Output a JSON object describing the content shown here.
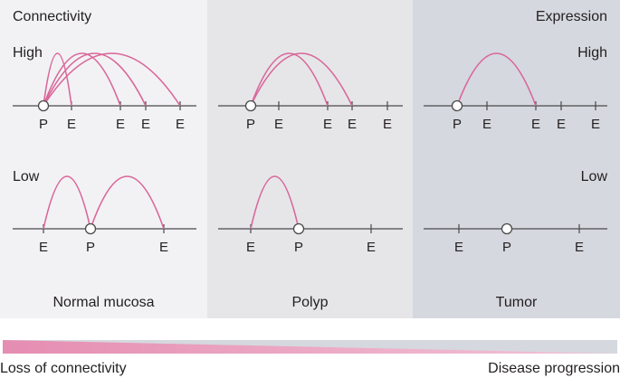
{
  "header": {
    "left_title": "Connectivity",
    "right_title": "Expression"
  },
  "levels": {
    "high_left": "High",
    "high_right": "High",
    "low_left": "Low",
    "low_right": "Low"
  },
  "panels": [
    {
      "name": "Normal mucosa",
      "high_row": {
        "ticks": [
          "P",
          "E",
          "E",
          "E",
          "E"
        ],
        "promoter_index": 0,
        "loops_to": [
          1,
          2,
          3,
          4
        ]
      },
      "low_row": {
        "ticks": [
          "E",
          "P",
          "E"
        ],
        "promoter_index": 1,
        "loops_to": [
          0,
          2
        ]
      }
    },
    {
      "name": "Polyp",
      "high_row": {
        "ticks": [
          "P",
          "E",
          "E",
          "E",
          "E"
        ],
        "promoter_index": 0,
        "loops_to": [
          2,
          3
        ]
      },
      "low_row": {
        "ticks": [
          "E",
          "P",
          "E"
        ],
        "promoter_index": 1,
        "loops_to": [
          0
        ]
      }
    },
    {
      "name": "Tumor",
      "high_row": {
        "ticks": [
          "P",
          "E",
          "E",
          "E",
          "E"
        ],
        "promoter_index": 0,
        "loops_to": [
          2
        ]
      },
      "low_row": {
        "ticks": [
          "E",
          "P",
          "E"
        ],
        "promoter_index": 1,
        "loops_to": []
      }
    }
  ],
  "progression": {
    "left_label": "Loss of connectivity",
    "right_label": "Disease progression"
  },
  "colors": {
    "loop": "#d9679a",
    "axis": "#4a4a4a",
    "wedge": "#e79ab9",
    "bar_bg": "#d5d8df",
    "panel_normal": "#f2f2f4",
    "panel_polyp": "#e6e6e9",
    "panel_tumor": "#d5d8df"
  }
}
